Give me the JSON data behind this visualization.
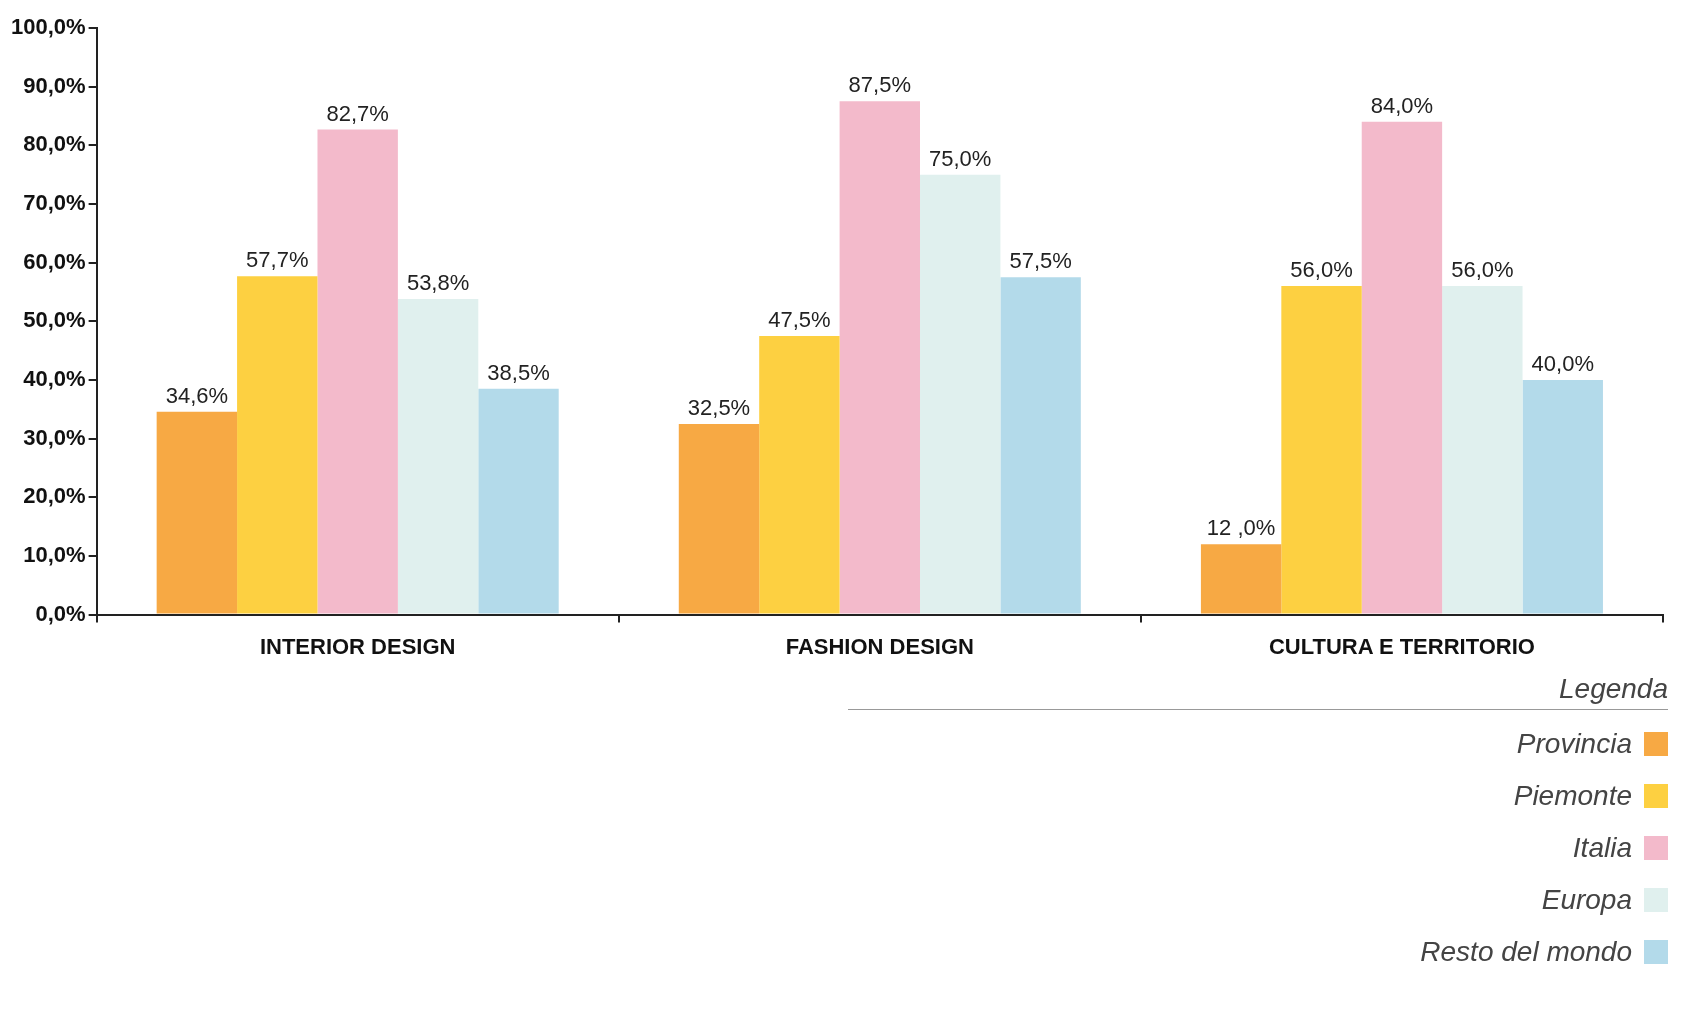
{
  "chart_data": {
    "type": "bar",
    "categories": [
      "INTERIOR DESIGN",
      "FASHION DESIGN",
      "CULTURA E TERRITORIO"
    ],
    "series": [
      {
        "name": "Provincia",
        "color": "#f7a944",
        "values": [
          34.6,
          32.5,
          12.0
        ],
        "value_labels": [
          "34,6%",
          "32,5%",
          "12 ,0%"
        ]
      },
      {
        "name": "Piemonte",
        "color": "#fdd041",
        "values": [
          57.7,
          47.5,
          56.0
        ],
        "value_labels": [
          "57,7%",
          "47,5%",
          "56,0%"
        ]
      },
      {
        "name": "Italia",
        "color": "#f3bacb",
        "values": [
          82.7,
          87.5,
          84.0
        ],
        "value_labels": [
          "82,7%",
          "87,5%",
          "84,0%"
        ]
      },
      {
        "name": "Europa",
        "color": "#e0f0ee",
        "values": [
          53.8,
          75.0,
          56.0
        ],
        "value_labels": [
          "53,8%",
          "75,0%",
          "56,0%"
        ]
      },
      {
        "name": "Resto del mondo",
        "color": "#b3daea",
        "values": [
          38.5,
          57.5,
          40.0
        ],
        "value_labels": [
          "38,5%",
          "57,5%",
          "40,0%"
        ]
      }
    ],
    "ylim": [
      0,
      100
    ],
    "yticks": [
      {
        "value": 0,
        "label": "0,0%"
      },
      {
        "value": 10,
        "label": "10,0%"
      },
      {
        "value": 20,
        "label": "20,0%"
      },
      {
        "value": 30,
        "label": "30,0%"
      },
      {
        "value": 40,
        "label": "40,0%"
      },
      {
        "value": 50,
        "label": "50,0%"
      },
      {
        "value": 60,
        "label": "60,0%"
      },
      {
        "value": 70,
        "label": "70,0%"
      },
      {
        "value": 80,
        "label": "80,0%"
      },
      {
        "value": 90,
        "label": "90,0%"
      },
      {
        "value": 100,
        "label": "100,0%"
      }
    ],
    "grid": false,
    "legend": "bottom right",
    "legend_title": "Legenda"
  }
}
